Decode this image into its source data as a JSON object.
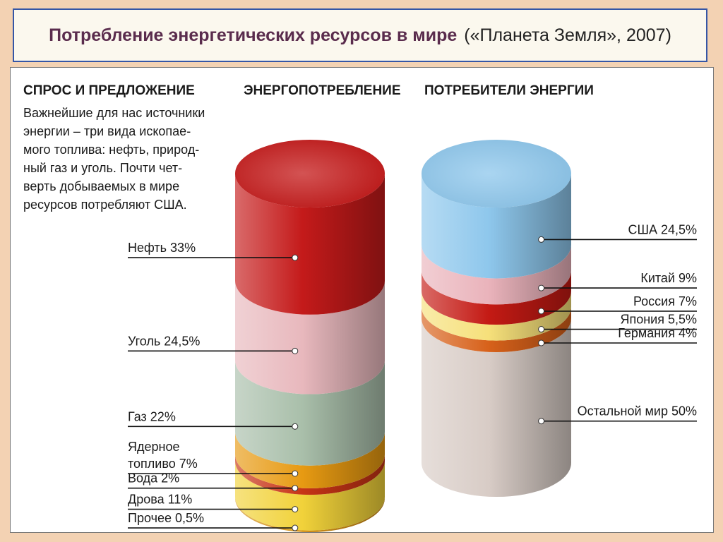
{
  "title": {
    "main": "Потребление энергетических ресурсов в мире",
    "source": "(«Планета Земля», 2007)"
  },
  "headers": {
    "supply_demand": "СПРОС И ПРЕДЛОЖЕНИЕ",
    "consumption": "ЭНЕРГОПОТРЕБЛЕНИЕ",
    "consumers": "ПОТРЕБИТЕЛИ ЭНЕРГИИ"
  },
  "intro_lines": [
    "Важнейшие для нас источники",
    "энергии – три вида ископае-",
    "мого топлива: нефть, природ-",
    "ный газ и уголь. Почти чет-",
    "верть добываемых в мире",
    "ресурсов потребляют США."
  ],
  "chart_data": [
    {
      "type": "bar",
      "title": "ЭНЕРГОПОТРЕБЛЕНИЕ",
      "stacked": true,
      "unit": "%",
      "segments": [
        {
          "label_lines": [
            "Нефть 33%"
          ],
          "value": 33,
          "color": "#c41a1a"
        },
        {
          "label_lines": [
            "Уголь 24,5%"
          ],
          "value": 24.5,
          "color": "#e8b8bd"
        },
        {
          "label_lines": [
            "Газ 22%"
          ],
          "value": 22,
          "color": "#a9bfaa"
        },
        {
          "label_lines": [
            "Ядерное",
            "топливо 7%"
          ],
          "value": 7,
          "color": "#e79a12"
        },
        {
          "label_lines": [
            "Вода 2%"
          ],
          "value": 2,
          "color": "#c73416"
        },
        {
          "label_lines": [
            "Дрова 11%"
          ],
          "value": 11,
          "color": "#f1d23a"
        },
        {
          "label_lines": [
            "Прочее 0,5%"
          ],
          "value": 0.5,
          "color": "#d49118"
        }
      ]
    },
    {
      "type": "bar",
      "title": "ПОТРЕБИТЕЛИ ЭНЕРГИИ",
      "stacked": true,
      "unit": "%",
      "segments": [
        {
          "label_lines": [
            "США 24,5%"
          ],
          "value": 24.5,
          "color": "#8ec7ec"
        },
        {
          "label_lines": [
            "Китай 9%"
          ],
          "value": 9,
          "color": "#eab3bb"
        },
        {
          "label_lines": [
            "Россия 7%"
          ],
          "value": 7,
          "color": "#c41a14"
        },
        {
          "label_lines": [
            "Япония 5,5%"
          ],
          "value": 5.5,
          "color": "#f6e07a"
        },
        {
          "label_lines": [
            "Германия 4%"
          ],
          "value": 4,
          "color": "#d7611a"
        },
        {
          "label_lines": [
            "Остальной мир 50%"
          ],
          "value": 50,
          "color": "#d8ccc6"
        }
      ]
    }
  ]
}
